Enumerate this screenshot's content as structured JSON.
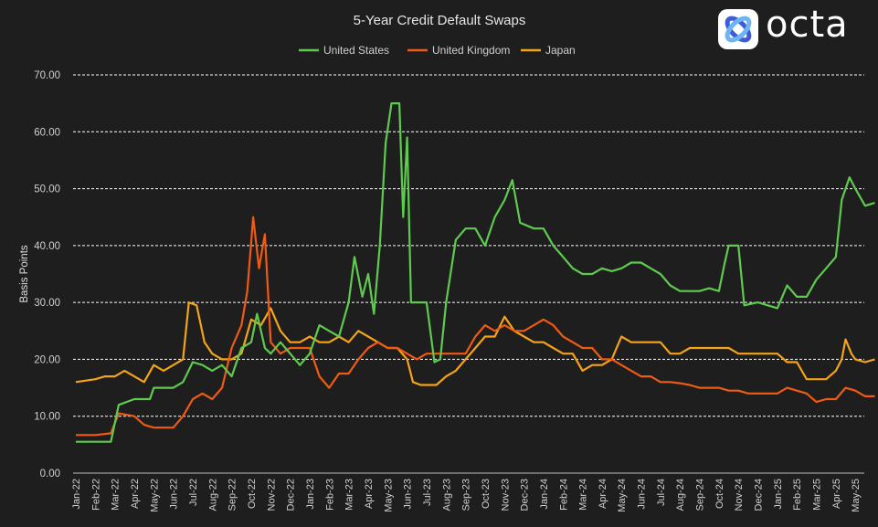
{
  "logo": {
    "text": "octa"
  },
  "chart_data": {
    "type": "line",
    "title": "5-Year Credit Default Swaps",
    "xlabel": "",
    "ylabel": "Basis Points",
    "ylim": [
      0,
      70
    ],
    "yticks": [
      "0.00",
      "10.00",
      "20.00",
      "30.00",
      "40.00",
      "50.00",
      "60.00",
      "70.00"
    ],
    "grid": true,
    "legend_position": "top-center",
    "x_months": [
      "Jan-22",
      "Feb-22",
      "Mar-22",
      "Apr-22",
      "May-22",
      "Jun-22",
      "Jul-22",
      "Aug-22",
      "Sep-22",
      "Oct-22",
      "Nov-22",
      "Dec-22",
      "Jan-23",
      "Feb-23",
      "Mar-23",
      "Apr-23",
      "May-23",
      "Jun-23",
      "Jul-23",
      "Aug-23",
      "Sep-23",
      "Oct-23",
      "Nov-23",
      "Dec-23",
      "Jan-24",
      "Feb-24",
      "Mar-24",
      "Apr-24",
      "May-24",
      "Jun-24",
      "Jul-24",
      "Aug-24",
      "Sep-24",
      "Oct-24",
      "Nov-24",
      "Dec-24",
      "Jan-25",
      "Feb-25",
      "Mar-25",
      "Apr-25",
      "May-25"
    ],
    "series": [
      {
        "name": "United States",
        "color": "#5ecb4f",
        "points": [
          [
            0,
            5.5
          ],
          [
            1,
            5.5
          ],
          [
            1.8,
            5.5
          ],
          [
            2.2,
            12
          ],
          [
            3,
            13
          ],
          [
            3.8,
            13
          ],
          [
            4,
            15
          ],
          [
            5,
            15
          ],
          [
            5.5,
            16
          ],
          [
            6,
            19.5
          ],
          [
            6.5,
            19
          ],
          [
            7,
            18
          ],
          [
            7.5,
            19
          ],
          [
            8,
            17
          ],
          [
            8.5,
            22
          ],
          [
            9,
            23
          ],
          [
            9.3,
            28
          ],
          [
            9.7,
            22
          ],
          [
            10,
            21
          ],
          [
            10.5,
            23
          ],
          [
            11,
            21
          ],
          [
            11.5,
            19
          ],
          [
            12,
            21
          ],
          [
            12.5,
            26
          ],
          [
            13,
            25
          ],
          [
            13.5,
            24
          ],
          [
            14,
            30
          ],
          [
            14.3,
            38
          ],
          [
            14.7,
            31
          ],
          [
            15,
            35
          ],
          [
            15.3,
            28
          ],
          [
            15.6,
            40
          ],
          [
            15.9,
            58
          ],
          [
            16.2,
            65
          ],
          [
            16.6,
            65
          ],
          [
            16.8,
            45
          ],
          [
            17,
            59
          ],
          [
            17.2,
            30
          ],
          [
            18,
            30
          ],
          [
            18.4,
            19.5
          ],
          [
            18.7,
            20
          ],
          [
            19,
            30
          ],
          [
            19.5,
            41
          ],
          [
            20,
            43
          ],
          [
            20.5,
            43
          ],
          [
            21,
            40
          ],
          [
            21.5,
            45
          ],
          [
            22,
            48
          ],
          [
            22.4,
            51.5
          ],
          [
            22.8,
            44
          ],
          [
            23.5,
            43
          ],
          [
            24,
            43
          ],
          [
            24.5,
            40
          ],
          [
            25,
            38
          ],
          [
            25.5,
            36
          ],
          [
            26,
            35
          ],
          [
            26.5,
            35
          ],
          [
            27,
            36
          ],
          [
            27.5,
            35.5
          ],
          [
            28,
            36
          ],
          [
            28.5,
            37
          ],
          [
            29,
            37
          ],
          [
            29.5,
            36
          ],
          [
            30,
            35
          ],
          [
            30.5,
            33
          ],
          [
            31,
            32
          ],
          [
            31.5,
            32
          ],
          [
            32,
            32
          ],
          [
            32.5,
            32.5
          ],
          [
            33,
            32
          ],
          [
            33.3,
            37
          ],
          [
            33.5,
            40
          ],
          [
            34,
            40
          ],
          [
            34.3,
            29.5
          ],
          [
            35,
            30
          ],
          [
            35.5,
            29.5
          ],
          [
            36,
            29
          ],
          [
            36.5,
            33
          ],
          [
            37,
            31
          ],
          [
            37.5,
            31
          ],
          [
            38,
            34
          ],
          [
            38.5,
            36
          ],
          [
            39,
            38
          ],
          [
            39.3,
            48
          ],
          [
            39.7,
            52
          ],
          [
            40,
            50
          ],
          [
            40.5,
            47
          ],
          [
            41,
            47.5
          ]
        ]
      },
      {
        "name": "United Kingdom",
        "color": "#ef5a14",
        "points": [
          [
            0,
            6.7
          ],
          [
            1,
            6.7
          ],
          [
            1.8,
            7
          ],
          [
            2.2,
            10.5
          ],
          [
            3,
            10
          ],
          [
            3.5,
            8.5
          ],
          [
            4,
            8
          ],
          [
            5,
            8
          ],
          [
            5.5,
            10
          ],
          [
            6,
            13
          ],
          [
            6.5,
            14
          ],
          [
            7,
            13
          ],
          [
            7.5,
            15
          ],
          [
            8,
            22
          ],
          [
            8.5,
            26
          ],
          [
            8.8,
            32
          ],
          [
            9.1,
            45
          ],
          [
            9.4,
            36
          ],
          [
            9.7,
            42
          ],
          [
            10,
            23
          ],
          [
            10.5,
            21
          ],
          [
            11,
            22
          ],
          [
            11.5,
            22
          ],
          [
            12,
            22
          ],
          [
            12.5,
            17
          ],
          [
            13,
            15
          ],
          [
            13.5,
            17.5
          ],
          [
            14,
            17.5
          ],
          [
            14.5,
            20
          ],
          [
            15,
            22
          ],
          [
            15.5,
            23
          ],
          [
            16,
            22
          ],
          [
            16.5,
            22
          ],
          [
            17,
            21
          ],
          [
            17.5,
            20
          ],
          [
            18,
            21
          ],
          [
            19,
            21
          ],
          [
            20,
            21
          ],
          [
            20.5,
            24
          ],
          [
            21,
            26
          ],
          [
            21.5,
            25
          ],
          [
            22,
            26
          ],
          [
            22.5,
            25
          ],
          [
            23,
            25
          ],
          [
            23.5,
            26
          ],
          [
            24,
            27
          ],
          [
            24.5,
            26
          ],
          [
            25,
            24
          ],
          [
            25.5,
            23
          ],
          [
            26,
            22
          ],
          [
            26.5,
            22
          ],
          [
            27,
            20
          ],
          [
            27.5,
            20
          ],
          [
            28,
            19
          ],
          [
            28.5,
            18
          ],
          [
            29,
            17
          ],
          [
            29.5,
            17
          ],
          [
            30,
            16
          ],
          [
            30.5,
            16
          ],
          [
            31,
            15.8
          ],
          [
            31.5,
            15.5
          ],
          [
            32,
            15
          ],
          [
            32.5,
            15
          ],
          [
            33,
            15
          ],
          [
            33.5,
            14.5
          ],
          [
            34,
            14.5
          ],
          [
            34.5,
            14
          ],
          [
            35,
            14
          ],
          [
            35.5,
            14
          ],
          [
            36,
            14
          ],
          [
            36.5,
            15
          ],
          [
            37,
            14.5
          ],
          [
            37.5,
            14
          ],
          [
            38,
            12.5
          ],
          [
            38.5,
            13
          ],
          [
            39,
            13
          ],
          [
            39.5,
            15
          ],
          [
            40,
            14.5
          ],
          [
            40.5,
            13.5
          ],
          [
            41,
            13.5
          ]
        ]
      },
      {
        "name": "Japan",
        "color": "#f5a31a",
        "points": [
          [
            0,
            16
          ],
          [
            1,
            16.5
          ],
          [
            1.5,
            17
          ],
          [
            2,
            17
          ],
          [
            2.5,
            18
          ],
          [
            3,
            17
          ],
          [
            3.5,
            16
          ],
          [
            4,
            19
          ],
          [
            4.5,
            18
          ],
          [
            5,
            19
          ],
          [
            5.5,
            20
          ],
          [
            5.8,
            30
          ],
          [
            6.2,
            29.5
          ],
          [
            6.6,
            23
          ],
          [
            7,
            21
          ],
          [
            7.5,
            20
          ],
          [
            8,
            20
          ],
          [
            8.5,
            21
          ],
          [
            9,
            27
          ],
          [
            9.5,
            26
          ],
          [
            10,
            29
          ],
          [
            10.5,
            25
          ],
          [
            11,
            23
          ],
          [
            11.5,
            23
          ],
          [
            12,
            24
          ],
          [
            12.5,
            23
          ],
          [
            13,
            23
          ],
          [
            13.5,
            24
          ],
          [
            14,
            23
          ],
          [
            14.5,
            25
          ],
          [
            15,
            24
          ],
          [
            15.5,
            23
          ],
          [
            16,
            22
          ],
          [
            16.5,
            22
          ],
          [
            17,
            20
          ],
          [
            17.3,
            16
          ],
          [
            17.7,
            15.5
          ],
          [
            18.5,
            15.5
          ],
          [
            19,
            17
          ],
          [
            19.5,
            18
          ],
          [
            20,
            20
          ],
          [
            20.5,
            22
          ],
          [
            21,
            24
          ],
          [
            21.5,
            24
          ],
          [
            22,
            27.5
          ],
          [
            22.5,
            25
          ],
          [
            23,
            24
          ],
          [
            23.5,
            23
          ],
          [
            24,
            23
          ],
          [
            24.5,
            22
          ],
          [
            25,
            21
          ],
          [
            25.5,
            21
          ],
          [
            26,
            18
          ],
          [
            26.5,
            19
          ],
          [
            27,
            19
          ],
          [
            27.5,
            20
          ],
          [
            28,
            24
          ],
          [
            28.5,
            23
          ],
          [
            29,
            23
          ],
          [
            29.5,
            23
          ],
          [
            30,
            23
          ],
          [
            30.5,
            21
          ],
          [
            31,
            21
          ],
          [
            31.5,
            22
          ],
          [
            32,
            22
          ],
          [
            32.5,
            22
          ],
          [
            33,
            22
          ],
          [
            33.5,
            22
          ],
          [
            34,
            21
          ],
          [
            34.5,
            21
          ],
          [
            35,
            21
          ],
          [
            35.5,
            21
          ],
          [
            36,
            21
          ],
          [
            36.5,
            19.5
          ],
          [
            37,
            19.5
          ],
          [
            37.5,
            16.5
          ],
          [
            38,
            16.5
          ],
          [
            38.5,
            16.5
          ],
          [
            39,
            18
          ],
          [
            39.3,
            20
          ],
          [
            39.5,
            23.5
          ],
          [
            39.8,
            21
          ],
          [
            40,
            20
          ],
          [
            40.5,
            19.5
          ],
          [
            41,
            20
          ]
        ]
      }
    ]
  }
}
